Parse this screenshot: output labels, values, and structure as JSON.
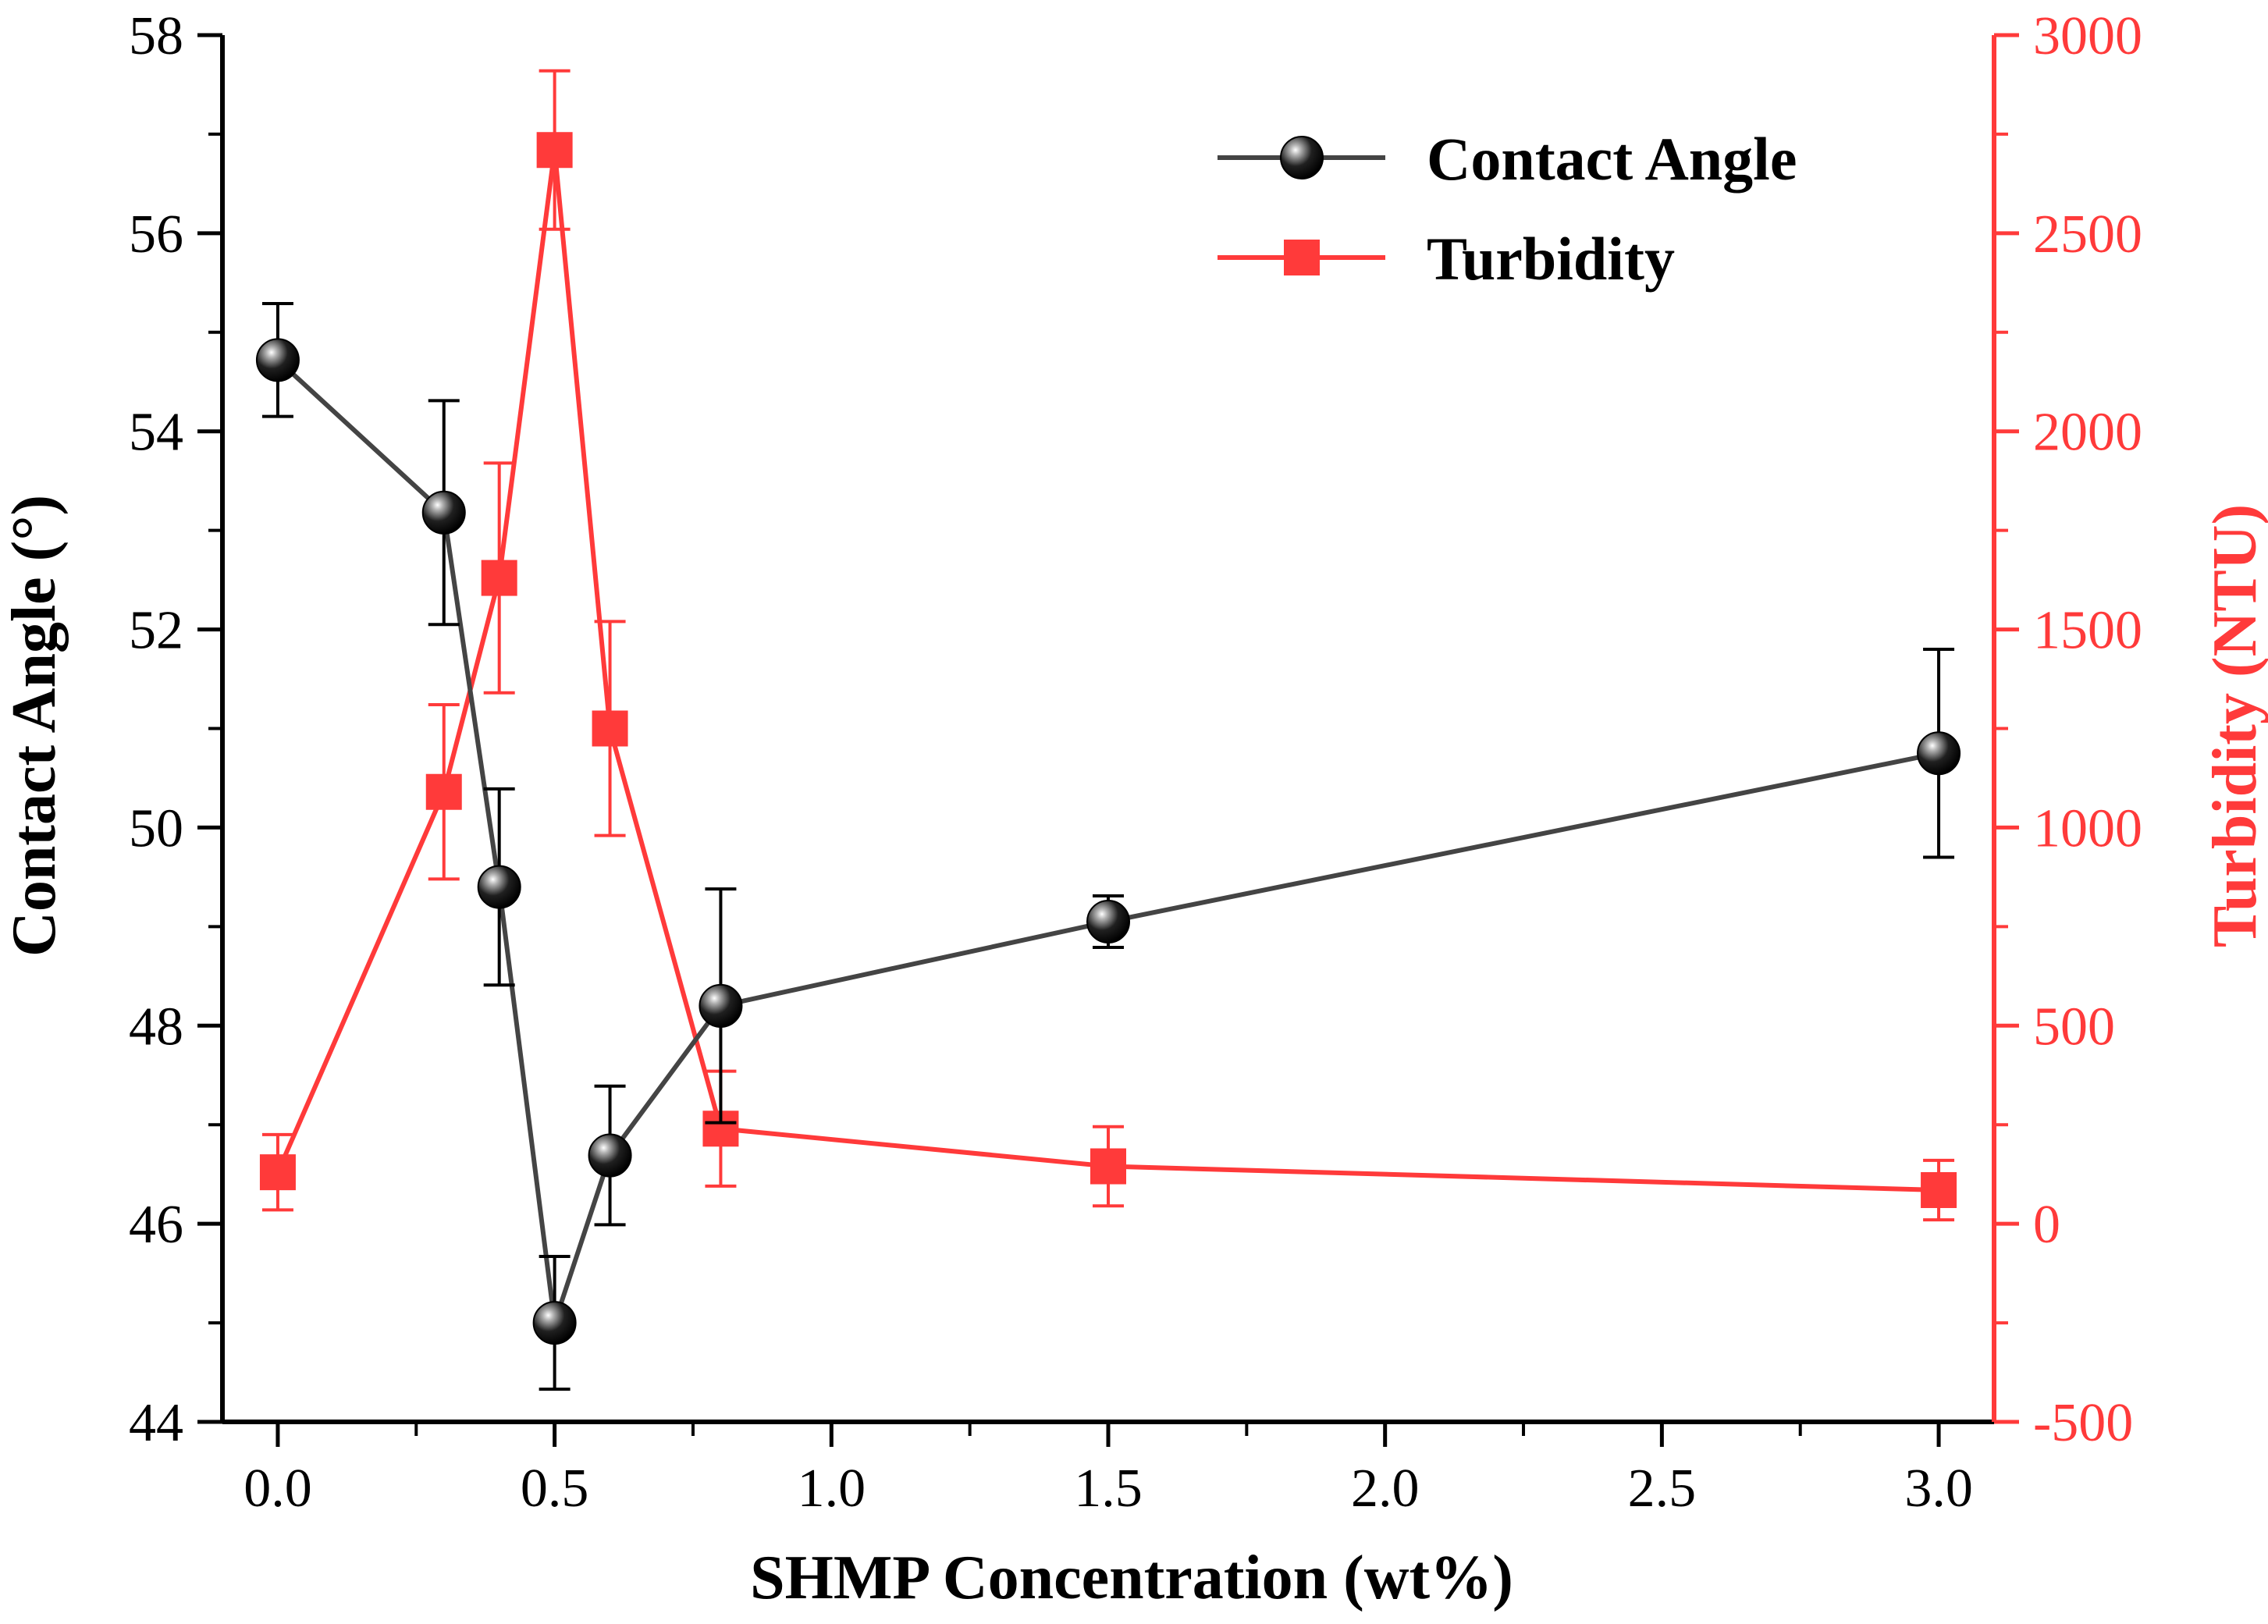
{
  "chart_data": {
    "type": "line",
    "title": "",
    "xlabel": "SHMP Concentration (wt%)",
    "ylabel": "Contact Angle (°)",
    "y2label": "Turbidity (NTU)",
    "xlim": [
      -0.1,
      3.1
    ],
    "ylim": [
      44,
      58
    ],
    "y2lim": [
      -500,
      3000
    ],
    "xticks": [
      "0.0",
      "0.5",
      "1.0",
      "1.5",
      "2.0",
      "2.5",
      "3.0"
    ],
    "yticks": [
      "44",
      "46",
      "48",
      "50",
      "52",
      "54",
      "56",
      "58"
    ],
    "y2ticks": [
      "-500",
      "0",
      "500",
      "1000",
      "1500",
      "2000",
      "2500",
      "3000"
    ],
    "grid": false,
    "legend_position": "top-right",
    "axis_colors": {
      "left": "#000000",
      "right": "#ff3a3a"
    },
    "series": [
      {
        "name": "Contact Angle",
        "axis": "left",
        "color": "#444444",
        "marker": "sphere",
        "x": [
          0.0,
          0.3,
          0.4,
          0.5,
          0.6,
          0.8,
          1.5,
          3.0
        ],
        "y": [
          54.72,
          53.18,
          49.4,
          45.0,
          46.69,
          48.2,
          49.05,
          50.75
        ],
        "err": [
          0.57,
          1.13,
          0.99,
          0.67,
          0.7,
          1.18,
          0.26,
          1.05
        ]
      },
      {
        "name": "Turbidity",
        "axis": "right",
        "color": "#ff3a3a",
        "marker": "square",
        "x": [
          0.0,
          0.3,
          0.4,
          0.5,
          0.6,
          0.8,
          1.5,
          3.0
        ],
        "y": [
          130,
          1090,
          1630,
          2710,
          1250,
          240,
          145,
          85
        ],
        "err": [
          95,
          220,
          290,
          200,
          270,
          145,
          100,
          75
        ]
      }
    ]
  }
}
